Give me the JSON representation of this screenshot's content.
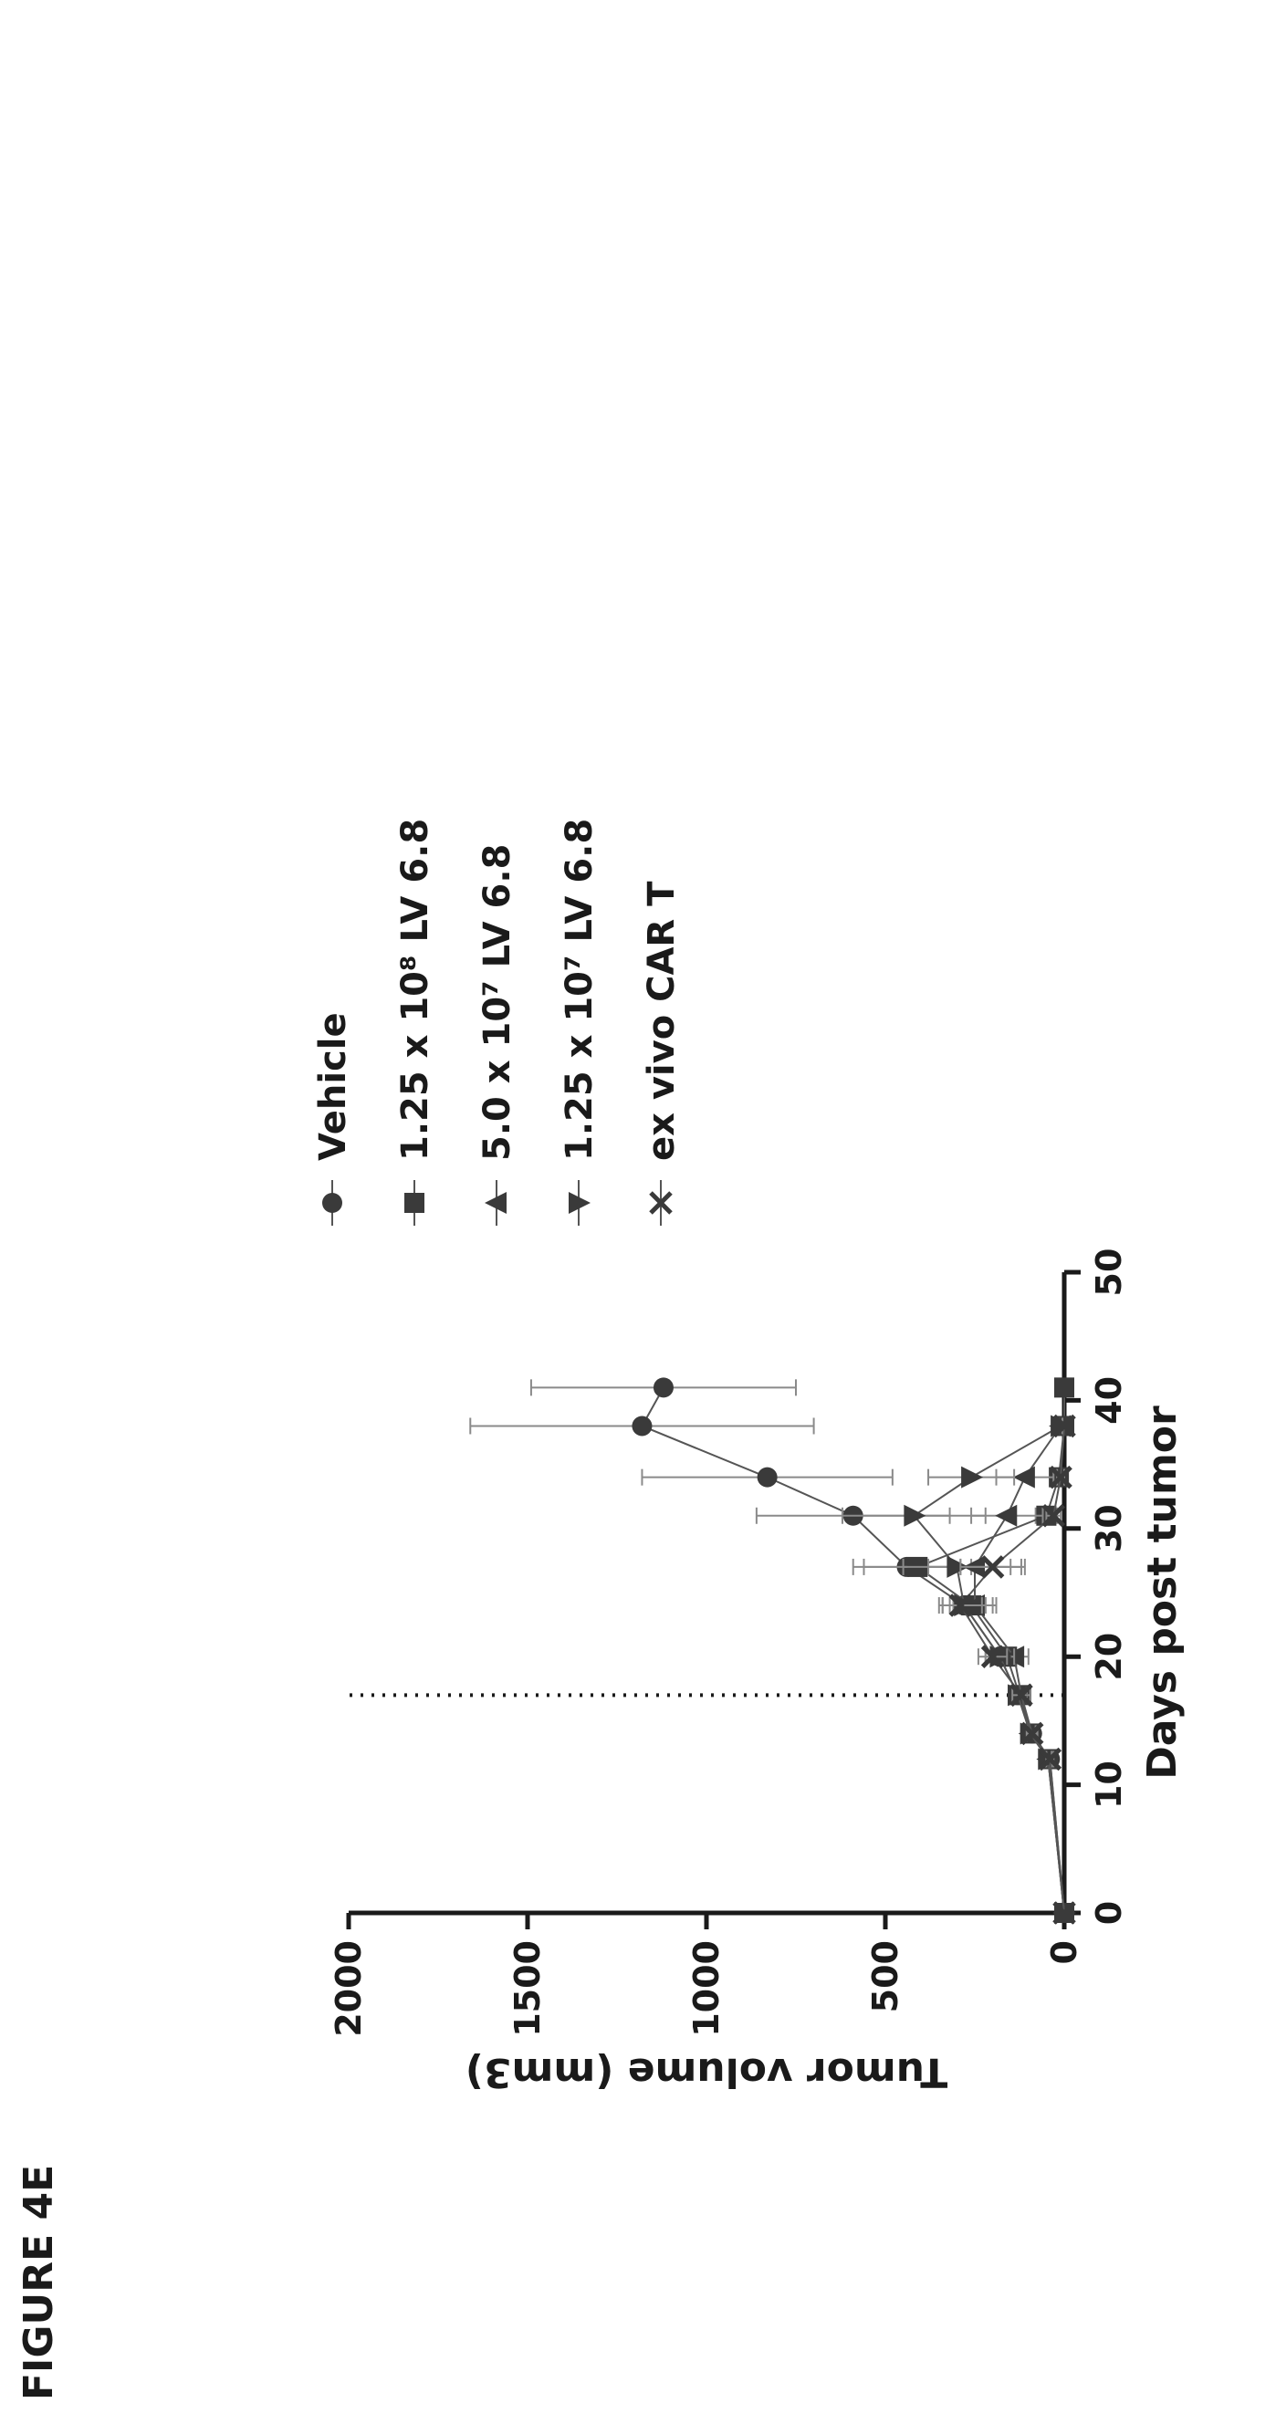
{
  "figure_label": "FIGURE 4E",
  "chart_data": {
    "type": "line",
    "title": "",
    "xlabel": "Days post tumor",
    "ylabel": "Tumor volume  (mm3)",
    "xlim": [
      0,
      50
    ],
    "ylim": [
      0,
      2000
    ],
    "x_ticks": [
      0,
      10,
      20,
      30,
      40,
      50
    ],
    "y_ticks": [
      0,
      500,
      1000,
      1500,
      2000
    ],
    "grid": false,
    "legend_position": "right",
    "annotations": [
      {
        "type": "vertical-dotted-line",
        "x": 17
      }
    ],
    "series": [
      {
        "name": "Vehicle",
        "marker": "circle",
        "color": "#3a3a3a",
        "x": [
          0,
          12,
          14,
          17,
          20,
          24,
          27,
          31,
          34,
          38,
          41
        ],
        "y": [
          0,
          40,
          90,
          130,
          180,
          280,
          440,
          590,
          830,
          1180,
          1120
        ],
        "err": [
          0,
          10,
          15,
          25,
          40,
          60,
          150,
          270,
          350,
          480,
          370
        ]
      },
      {
        "name": "1.25 x 10⁸ LV 6.8",
        "marker": "square",
        "color": "#3a3a3a",
        "x": [
          0,
          12,
          14,
          17,
          20,
          24,
          27,
          31,
          34,
          38,
          41
        ],
        "y": [
          0,
          45,
          95,
          125,
          160,
          260,
          410,
          50,
          15,
          0,
          0
        ],
        "err": [
          0,
          10,
          15,
          25,
          40,
          60,
          150,
          30,
          15,
          0,
          0
        ]
      },
      {
        "name": "5.0 x 10⁷ LV 6.8",
        "marker": "triangle-up",
        "color": "#3a3a3a",
        "x": [
          0,
          12,
          14,
          17,
          20,
          24,
          27,
          31,
          34,
          38
        ],
        "y": [
          0,
          45,
          95,
          120,
          140,
          250,
          250,
          160,
          110,
          10
        ],
        "err": [
          0,
          10,
          15,
          25,
          40,
          60,
          130,
          100,
          80,
          5
        ]
      },
      {
        "name": "1.25 x 10⁷ LV 6.8",
        "marker": "triangle-down",
        "color": "#3a3a3a",
        "x": [
          0,
          12,
          14,
          17,
          20,
          24,
          27,
          31,
          34,
          38
        ],
        "y": [
          0,
          45,
          95,
          130,
          180,
          280,
          300,
          420,
          260,
          10
        ],
        "err": [
          0,
          10,
          15,
          25,
          40,
          60,
          150,
          200,
          120,
          5
        ]
      },
      {
        "name": "ex vivo CAR T",
        "marker": "x",
        "color": "#3a3a3a",
        "x": [
          0,
          12,
          14,
          17,
          20,
          24,
          27,
          31,
          34,
          38
        ],
        "y": [
          0,
          40,
          90,
          120,
          200,
          290,
          200,
          30,
          10,
          0
        ],
        "err": [
          0,
          10,
          15,
          25,
          40,
          60,
          90,
          20,
          10,
          0
        ]
      }
    ]
  }
}
